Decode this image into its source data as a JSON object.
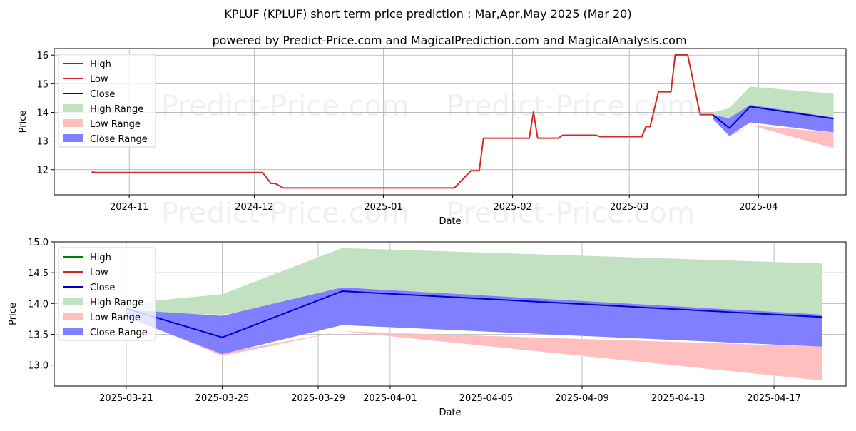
{
  "page": {
    "title": "KPLUF (KPLUF) short term price prediction : Mar,Apr,May 2025 (Mar 20)",
    "subtitle": "powered by Predict-Price.com and MagicalPrediction.com and MagicalAnalysis.com",
    "watermark": "Predict-Price.com"
  },
  "colors": {
    "high": "#008000",
    "low": "#d62728",
    "close": "#0000cc",
    "high_range": "#c1e1c1",
    "low_range": "#ffbfbf",
    "close_range": "#7f7fff",
    "grid": "#b0b0b0"
  },
  "chart_data": [
    {
      "type": "line",
      "name": "top",
      "xlabel": "Date",
      "ylabel": "Price",
      "xlim": [
        "2024-10-14",
        "2025-04-22"
      ],
      "ylim": [
        11.12,
        16.23
      ],
      "yticks": [
        12,
        13,
        14,
        15,
        16
      ],
      "xticks": [
        {
          "date": "2024-11-01",
          "label": "2024-11"
        },
        {
          "date": "2024-12-01",
          "label": "2024-12"
        },
        {
          "date": "2025-01-01",
          "label": "2025-01"
        },
        {
          "date": "2025-02-01",
          "label": "2025-02"
        },
        {
          "date": "2025-03-01",
          "label": "2025-03"
        },
        {
          "date": "2025-04-01",
          "label": "2025-04"
        }
      ],
      "grid": true,
      "legend_position": "top-left",
      "legend": [
        "High",
        "Low",
        "Close",
        "High Range",
        "Low Range",
        "Close Range"
      ],
      "history": [
        [
          "2024-10-23",
          11.92
        ],
        [
          "2024-10-24",
          11.9
        ],
        [
          "2024-12-03",
          11.9
        ],
        [
          "2024-12-05",
          11.52
        ],
        [
          "2024-12-06",
          11.52
        ],
        [
          "2024-12-08",
          11.36
        ],
        [
          "2025-01-18",
          11.36
        ],
        [
          "2025-01-22",
          11.96
        ],
        [
          "2025-01-24",
          11.96
        ],
        [
          "2025-01-25",
          13.1
        ],
        [
          "2025-02-05",
          13.1
        ],
        [
          "2025-02-06",
          14.02
        ],
        [
          "2025-02-07",
          13.1
        ],
        [
          "2025-02-12",
          13.1
        ],
        [
          "2025-02-13",
          13.2
        ],
        [
          "2025-02-21",
          13.2
        ],
        [
          "2025-02-22",
          13.15
        ],
        [
          "2025-03-04",
          13.15
        ],
        [
          "2025-03-05",
          13.5
        ],
        [
          "2025-03-06",
          13.5
        ],
        [
          "2025-03-08",
          14.72
        ],
        [
          "2025-03-11",
          14.72
        ],
        [
          "2025-03-12",
          16.01
        ],
        [
          "2025-03-15",
          16.01
        ],
        [
          "2025-03-18",
          13.92
        ],
        [
          "2025-03-21",
          13.92
        ]
      ],
      "forecast_dates": [
        "2025-03-21",
        "2025-03-25",
        "2025-03-30",
        "2025-04-19"
      ],
      "forecast_close": [
        13.92,
        13.45,
        14.2,
        13.78
      ],
      "high_range": {
        "upper": [
          14.0,
          14.15,
          14.9,
          14.65
        ],
        "lower": [
          13.85,
          13.82,
          14.1,
          13.82
        ]
      },
      "low_range": {
        "upper": [
          13.87,
          13.2,
          13.55,
          13.3
        ],
        "lower": [
          13.8,
          13.15,
          13.55,
          12.75
        ]
      },
      "close_range": {
        "upper": [
          13.9,
          13.8,
          14.26,
          13.82
        ],
        "lower": [
          13.78,
          13.18,
          13.65,
          13.3
        ]
      }
    },
    {
      "type": "line",
      "name": "bottom",
      "xlabel": "Date",
      "ylabel": "Price",
      "xlim": [
        "2025-03-18",
        "2025-04-20"
      ],
      "ylim": [
        12.66,
        15.0
      ],
      "yticks": [
        13.0,
        13.5,
        14.0,
        14.5,
        15.0
      ],
      "ytick_labels": [
        "13.0",
        "13.5",
        "14.0",
        "14.5",
        "15.0"
      ],
      "xticks": [
        {
          "date": "2025-03-21",
          "label": "2025-03-21"
        },
        {
          "date": "2025-03-25",
          "label": "2025-03-25"
        },
        {
          "date": "2025-03-29",
          "label": "2025-03-29"
        },
        {
          "date": "2025-04-01",
          "label": "2025-04-01"
        },
        {
          "date": "2025-04-05",
          "label": "2025-04-05"
        },
        {
          "date": "2025-04-09",
          "label": "2025-04-09"
        },
        {
          "date": "2025-04-13",
          "label": "2025-04-13"
        },
        {
          "date": "2025-04-17",
          "label": "2025-04-17"
        }
      ],
      "grid": true,
      "legend_position": "top-left",
      "legend": [
        "High",
        "Low",
        "Close",
        "High Range",
        "Low Range",
        "Close Range"
      ],
      "forecast_dates": [
        "2025-03-21",
        "2025-03-25",
        "2025-03-30",
        "2025-04-19"
      ],
      "forecast_close": [
        13.92,
        13.45,
        14.2,
        13.78
      ],
      "high_range": {
        "upper": [
          14.0,
          14.15,
          14.9,
          14.65
        ],
        "lower": [
          13.85,
          13.82,
          14.1,
          13.82
        ]
      },
      "low_range": {
        "upper": [
          13.87,
          13.2,
          13.55,
          13.3
        ],
        "lower": [
          13.8,
          13.15,
          13.55,
          12.75
        ]
      },
      "close_range": {
        "upper": [
          13.9,
          13.8,
          14.26,
          13.82
        ],
        "lower": [
          13.78,
          13.18,
          13.65,
          13.3
        ]
      }
    }
  ]
}
